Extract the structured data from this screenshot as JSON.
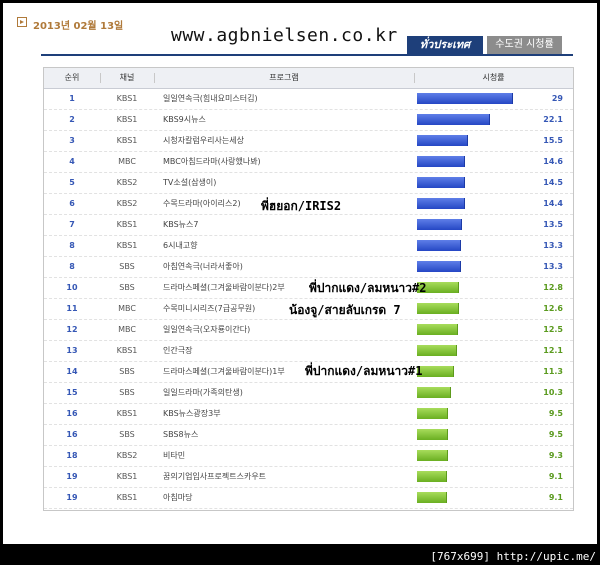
{
  "header": {
    "date": "2013년 02월 13일",
    "site": "www.agbnielsen.co.kr",
    "tab_national": "ทั่วประเทศ",
    "tab_metro": "수도권 시청률"
  },
  "columns": [
    "순위",
    "채널",
    "프로그램",
    "시청률"
  ],
  "annotations": [
    "พี่ฮยอก/IRIS2",
    "พี่ปากแดง/ลมหนาว#2",
    "น้องจู/สายลับเกรด 7",
    "พี่ปากแดง/ลมหนาว#1"
  ],
  "footer": "[767x699] http://upic.me/",
  "colors": {
    "blue_bar": "#2547c4",
    "green_bar": "#6aaf21",
    "header_tab": "#1e3f7a"
  },
  "chart_data": {
    "type": "table",
    "title": "2013년 02월 13일",
    "xlabel": "시청률",
    "xlim": [
      0,
      29
    ],
    "rows": [
      {
        "rank": "1",
        "channel": "KBS1",
        "program": "일일연속극(힘내요미스터김)",
        "rating": 29,
        "rating_label": "29",
        "highlight": "blue"
      },
      {
        "rank": "2",
        "channel": "KBS1",
        "program": "KBS9시뉴스",
        "rating": 22.1,
        "rating_label": "22.1",
        "highlight": "blue"
      },
      {
        "rank": "3",
        "channel": "KBS1",
        "program": "시청자칼럼우리사는세상",
        "rating": 15.5,
        "rating_label": "15.5",
        "highlight": "blue"
      },
      {
        "rank": "4",
        "channel": "MBC",
        "program": "MBC아침드라마(사랑했나봐)",
        "rating": 14.6,
        "rating_label": "14.6",
        "highlight": "blue"
      },
      {
        "rank": "5",
        "channel": "KBS2",
        "program": "TV소설(삼생이)",
        "rating": 14.5,
        "rating_label": "14.5",
        "highlight": "blue"
      },
      {
        "rank": "6",
        "channel": "KBS2",
        "program": "수목드라마(아이리스2)",
        "rating": 14.4,
        "rating_label": "14.4",
        "highlight": "blue"
      },
      {
        "rank": "7",
        "channel": "KBS1",
        "program": "KBS뉴스7",
        "rating": 13.5,
        "rating_label": "13.5",
        "highlight": "blue"
      },
      {
        "rank": "8",
        "channel": "KBS1",
        "program": "6시내고향",
        "rating": 13.3,
        "rating_label": "13.3",
        "highlight": "blue"
      },
      {
        "rank": "8",
        "channel": "SBS",
        "program": "아침연속극(너라서좋아)",
        "rating": 13.3,
        "rating_label": "13.3",
        "highlight": "blue"
      },
      {
        "rank": "10",
        "channel": "SBS",
        "program": "드라마스페셜(그겨울바람이분다)2부",
        "rating": 12.8,
        "rating_label": "12.8",
        "highlight": "green"
      },
      {
        "rank": "11",
        "channel": "MBC",
        "program": "수목미니시리즈(7급공무원)",
        "rating": 12.6,
        "rating_label": "12.6",
        "highlight": "green"
      },
      {
        "rank": "12",
        "channel": "MBC",
        "program": "일일연속극(오자룡이간다)",
        "rating": 12.5,
        "rating_label": "12.5",
        "highlight": "green"
      },
      {
        "rank": "13",
        "channel": "KBS1",
        "program": "인간극장",
        "rating": 12.1,
        "rating_label": "12.1",
        "highlight": "green"
      },
      {
        "rank": "14",
        "channel": "SBS",
        "program": "드라마스페셜(그겨울바람이분다)1부",
        "rating": 11.3,
        "rating_label": "11.3",
        "highlight": "green"
      },
      {
        "rank": "15",
        "channel": "SBS",
        "program": "일일드라마(가족의탄생)",
        "rating": 10.3,
        "rating_label": "10.3",
        "highlight": "green"
      },
      {
        "rank": "16",
        "channel": "KBS1",
        "program": "KBS뉴스광장3부",
        "rating": 9.5,
        "rating_label": "9.5",
        "highlight": "green"
      },
      {
        "rank": "16",
        "channel": "SBS",
        "program": "SBS8뉴스",
        "rating": 9.5,
        "rating_label": "9.5",
        "highlight": "green"
      },
      {
        "rank": "18",
        "channel": "KBS2",
        "program": "비타민",
        "rating": 9.3,
        "rating_label": "9.3",
        "highlight": "green"
      },
      {
        "rank": "19",
        "channel": "KBS1",
        "program": "꿈의기업입사프로젝트스카우트",
        "rating": 9.1,
        "rating_label": "9.1",
        "highlight": "green"
      },
      {
        "rank": "19",
        "channel": "KBS1",
        "program": "아침마당",
        "rating": 9.1,
        "rating_label": "9.1",
        "highlight": "green"
      }
    ]
  }
}
